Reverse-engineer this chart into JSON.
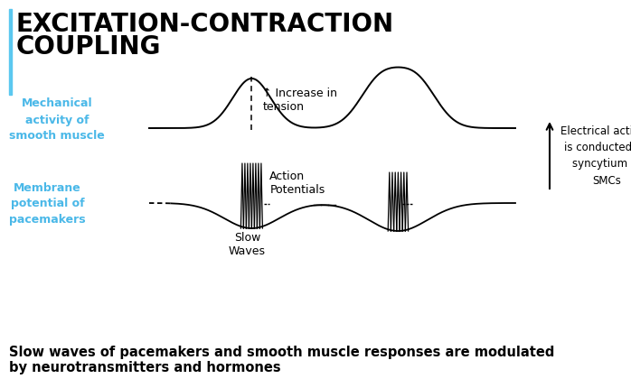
{
  "title_line1": "EXCITATION-CONTRACTION",
  "title_line2": "COUPLING",
  "title_color": "#000000",
  "title_fontsize": 20,
  "title_fontweight": "bold",
  "accent_bar_color": "#5bc8f0",
  "label_mechanical": "Mechanical\nactivity of\nsmooth muscle",
  "label_membrane": "Membrane\npotential of\npacemakers",
  "label_mechanical_color": "#4ab8e8",
  "label_membrane_color": "#4ab8e8",
  "label_increase": "↑ Increase in\ntension",
  "label_action": "Action\nPotentials",
  "label_slow": "Slow\nWaves",
  "label_electrical": "Electrical activity\nis conducted by\nsyncytium to\nSMCs",
  "footer": "Slow waves of pacemakers and smooth muscle responses are modulated\nby neurotransmitters and hormones",
  "footer_fontsize": 10.5,
  "footer_fontweight": "bold",
  "bg_color": "#ffffff"
}
